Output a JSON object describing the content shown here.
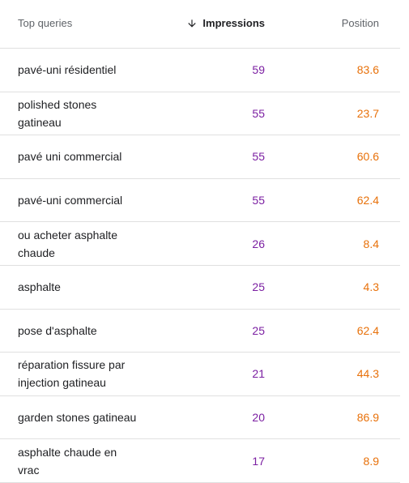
{
  "header": {
    "query_label": "Top queries",
    "impressions_label": "Impressions",
    "position_label": "Position",
    "sort_icon": "arrow-down-icon"
  },
  "colors": {
    "impressions": "#7b1fa2",
    "position": "#e8710a",
    "divider": "#e0e0e0"
  },
  "rows": [
    {
      "query": "pavé-uni résidentiel",
      "impressions": "59",
      "position": "83.6"
    },
    {
      "query": "polished stones gatineau",
      "impressions": "55",
      "position": "23.7"
    },
    {
      "query": "pavé uni commercial",
      "impressions": "55",
      "position": "60.6"
    },
    {
      "query": "pavé-uni commercial",
      "impressions": "55",
      "position": "62.4"
    },
    {
      "query": "ou acheter asphalte chaude",
      "impressions": "26",
      "position": "8.4"
    },
    {
      "query": "asphalte",
      "impressions": "25",
      "position": "4.3"
    },
    {
      "query": "pose d'asphalte",
      "impressions": "25",
      "position": "62.4"
    },
    {
      "query": "réparation fissure par injection gatineau",
      "impressions": "21",
      "position": "44.3"
    },
    {
      "query": "garden stones gatineau",
      "impressions": "20",
      "position": "86.9"
    },
    {
      "query": "asphalte chaude en vrac",
      "impressions": "17",
      "position": "8.9"
    }
  ]
}
